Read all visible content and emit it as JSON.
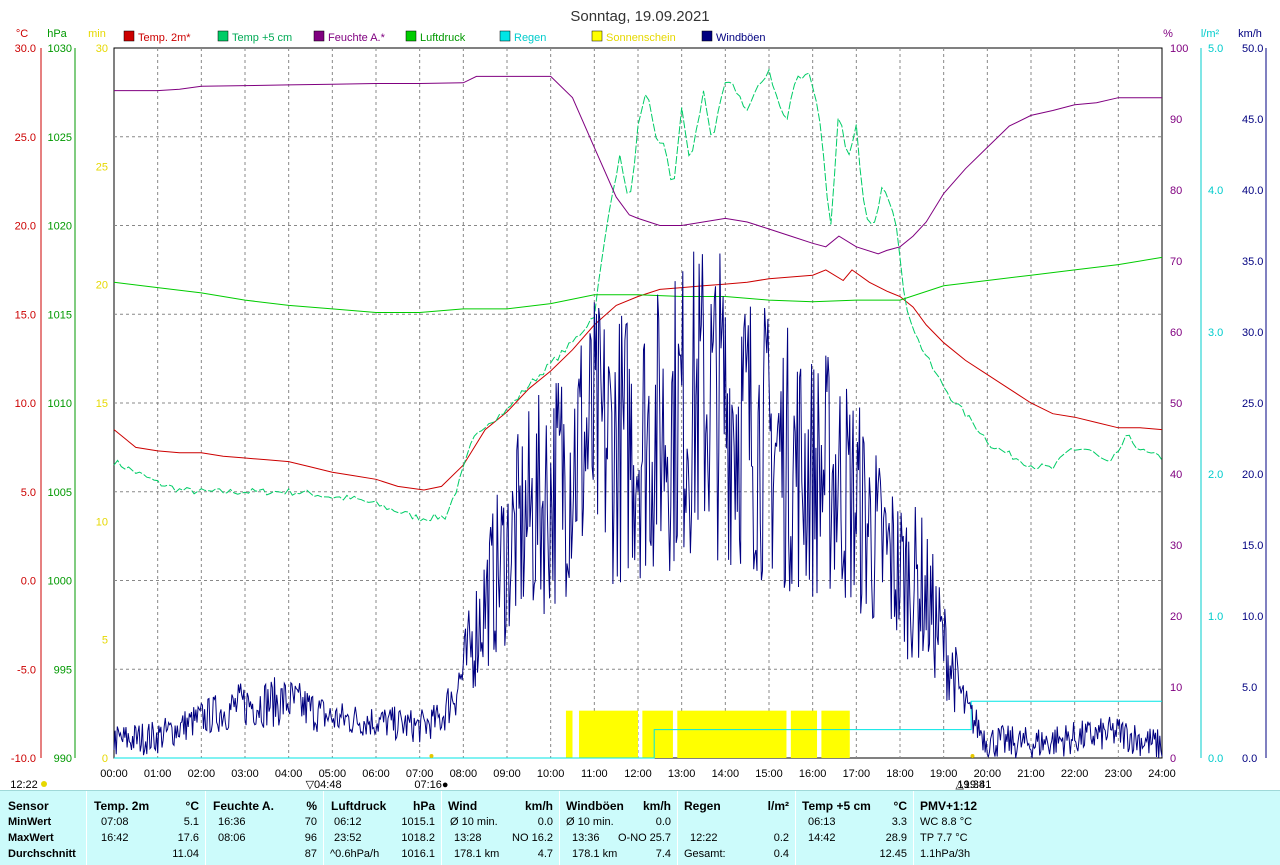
{
  "chart_data": {
    "type": "line",
    "title": "Sonntag, 19.09.2021",
    "x_ticks": [
      "00:00",
      "01:00",
      "02:00",
      "03:00",
      "04:00",
      "05:00",
      "06:00",
      "07:00",
      "08:00",
      "09:00",
      "10:00",
      "11:00",
      "12:00",
      "13:00",
      "14:00",
      "15:00",
      "16:00",
      "17:00",
      "18:00",
      "19:00",
      "20:00",
      "21:00",
      "22:00",
      "23:00",
      "24:00"
    ],
    "xlim": [
      0,
      24
    ],
    "axes": {
      "temp": {
        "unit": "°C",
        "min": -10,
        "max": 30,
        "ticks": [
          "30.0",
          "25.0",
          "20.0",
          "15.0",
          "10.0",
          "5.0",
          "0.0",
          "-5.0",
          "-10.0"
        ],
        "color": "#cc0000"
      },
      "pressure": {
        "unit": "hPa",
        "min": 990,
        "max": 1030,
        "ticks": [
          "1030",
          "1025",
          "1020",
          "1015",
          "1010",
          "1005",
          "1000",
          "995",
          "990"
        ],
        "color": "#009900"
      },
      "sunshine": {
        "unit": "min",
        "min": 0,
        "max": 30,
        "ticks": [
          "30",
          "25",
          "20",
          "15",
          "10",
          "5",
          "0"
        ],
        "color": "#e6d800"
      },
      "humidity": {
        "unit": "%",
        "min": 0,
        "max": 100,
        "ticks": [
          "100",
          "90",
          "80",
          "70",
          "60",
          "50",
          "40",
          "30",
          "20",
          "10",
          "0"
        ],
        "color": "#800080"
      },
      "rain": {
        "unit": "l/m²",
        "min": 0,
        "max": 5,
        "ticks": [
          "5.0",
          "4.0",
          "3.0",
          "2.0",
          "1.0",
          "0.0"
        ],
        "color": "#00cccc"
      },
      "wind": {
        "unit": "km/h",
        "min": 0,
        "max": 50,
        "ticks": [
          "50.0",
          "45.0",
          "40.0",
          "35.0",
          "30.0",
          "25.0",
          "20.0",
          "15.0",
          "10.0",
          "5.0",
          "0.0"
        ],
        "color": "#000080"
      }
    },
    "legend": [
      {
        "name": "Temp. 2m*",
        "color": "#cc0000"
      },
      {
        "name": "Temp +5 cm",
        "color": "#00cc66"
      },
      {
        "name": "Feuchte A.*",
        "color": "#800080"
      },
      {
        "name": "Luftdruck",
        "color": "#00cc00"
      },
      {
        "name": "Regen",
        "color": "#00e5e5"
      },
      {
        "name": "Sonnenschein",
        "color": "#ffff00"
      },
      {
        "name": "Windböen",
        "color": "#000080"
      }
    ],
    "series": [
      {
        "key": "temp2m",
        "axis": "temp",
        "color": "#cc0000",
        "points": [
          [
            0,
            8.5
          ],
          [
            0.5,
            7.5
          ],
          [
            1,
            7.3
          ],
          [
            1.5,
            7.2
          ],
          [
            2,
            7.2
          ],
          [
            2.5,
            7
          ],
          [
            3,
            6.9
          ],
          [
            3.5,
            6.8
          ],
          [
            4,
            6.7
          ],
          [
            4.5,
            6.4
          ],
          [
            5,
            6.1
          ],
          [
            5.5,
            5.9
          ],
          [
            6,
            5.7
          ],
          [
            6.5,
            5.3
          ],
          [
            7.1,
            5.1
          ],
          [
            7.5,
            5.3
          ],
          [
            8,
            6.5
          ],
          [
            8.5,
            8.5
          ],
          [
            9,
            9.5
          ],
          [
            9.5,
            10.8
          ],
          [
            10,
            11.8
          ],
          [
            10.5,
            13
          ],
          [
            11,
            14.4
          ],
          [
            11.5,
            15.5
          ],
          [
            12,
            16
          ],
          [
            12.5,
            16.4
          ],
          [
            13,
            16.5
          ],
          [
            13.5,
            16.6
          ],
          [
            14,
            16.7
          ],
          [
            14.5,
            16.8
          ],
          [
            15,
            17
          ],
          [
            15.5,
            17.1
          ],
          [
            16,
            17.2
          ],
          [
            16.3,
            17.5
          ],
          [
            16.7,
            16.9
          ],
          [
            16.9,
            17.5
          ],
          [
            17.3,
            16.8
          ],
          [
            17.7,
            16.3
          ],
          [
            18,
            16.0
          ],
          [
            18.3,
            15.4
          ],
          [
            18.6,
            14.4
          ],
          [
            19,
            13.4
          ],
          [
            19.5,
            12.4
          ],
          [
            20,
            11.6
          ],
          [
            20.5,
            10.8
          ],
          [
            21,
            10
          ],
          [
            21.5,
            9.4
          ],
          [
            22,
            9.2
          ],
          [
            22.5,
            8.9
          ],
          [
            23,
            8.6
          ],
          [
            23.5,
            8.6
          ],
          [
            24,
            8.5
          ]
        ]
      },
      {
        "key": "temp5cm",
        "axis": "temp",
        "color": "#00cc66",
        "dashed": true,
        "points": [
          [
            0,
            6.7
          ],
          [
            0.5,
            6.1
          ],
          [
            1,
            5.5
          ],
          [
            1.5,
            5.1
          ],
          [
            2,
            5.0
          ],
          [
            3,
            5.0
          ],
          [
            4,
            5.0
          ],
          [
            4.5,
            4.9
          ],
          [
            5,
            4.7
          ],
          [
            5.5,
            4.6
          ],
          [
            6,
            4.3
          ],
          [
            6.5,
            3.9
          ],
          [
            7,
            3.5
          ],
          [
            7.6,
            3.6
          ],
          [
            7.9,
            5.5
          ],
          [
            8.2,
            7.8
          ],
          [
            8.5,
            8.8
          ],
          [
            9,
            9.6
          ],
          [
            9.5,
            11.0
          ],
          [
            10,
            12.2
          ],
          [
            10.5,
            13.4
          ],
          [
            10.8,
            14.3
          ],
          [
            11.0,
            15.0
          ],
          [
            11.2,
            18.5
          ],
          [
            11.4,
            21.8
          ],
          [
            11.6,
            24
          ],
          [
            11.8,
            21
          ],
          [
            12,
            25.5
          ],
          [
            12.2,
            27.5
          ],
          [
            12.4,
            25
          ],
          [
            12.6,
            24.5
          ],
          [
            12.8,
            22
          ],
          [
            13,
            26.5
          ],
          [
            13.2,
            23.5
          ],
          [
            13.5,
            27.5
          ],
          [
            13.7,
            24.8
          ],
          [
            14,
            28
          ],
          [
            14.2,
            27.8
          ],
          [
            14.5,
            26.5
          ],
          [
            14.7,
            27.5
          ],
          [
            15,
            28.8
          ],
          [
            15.2,
            27
          ],
          [
            15.4,
            25.8
          ],
          [
            15.6,
            28.2
          ],
          [
            15.9,
            28.7
          ],
          [
            16,
            27.9
          ],
          [
            16.2,
            25.5
          ],
          [
            16.4,
            19.5
          ],
          [
            16.6,
            26.5
          ],
          [
            16.8,
            23.5
          ],
          [
            17.0,
            25.5
          ],
          [
            17.2,
            20.5
          ],
          [
            17.4,
            19.8
          ],
          [
            17.6,
            22.5
          ],
          [
            17.9,
            20.5
          ],
          [
            18.1,
            15.8
          ],
          [
            18.4,
            13.6
          ],
          [
            18.8,
            11.7
          ],
          [
            19.2,
            10.2
          ],
          [
            19.7,
            8.8
          ],
          [
            20.1,
            7.6
          ],
          [
            20.5,
            7.1
          ],
          [
            21,
            6.5
          ],
          [
            21.5,
            6.3
          ],
          [
            21.9,
            7.4
          ],
          [
            22.3,
            7.4
          ],
          [
            22.8,
            6.5
          ],
          [
            23.2,
            8.1
          ],
          [
            23.6,
            7.2
          ],
          [
            24,
            6.9
          ]
        ]
      },
      {
        "key": "humidity",
        "axis": "humidity",
        "color": "#800080",
        "points": [
          [
            0,
            94
          ],
          [
            1,
            94
          ],
          [
            1.5,
            94.2
          ],
          [
            2,
            94.6
          ],
          [
            3,
            94.7
          ],
          [
            4,
            94.8
          ],
          [
            5,
            94.9
          ],
          [
            6,
            95
          ],
          [
            7,
            95
          ],
          [
            8,
            95.1
          ],
          [
            8.3,
            96
          ],
          [
            9,
            96
          ],
          [
            10,
            96
          ],
          [
            10.5,
            93
          ],
          [
            11,
            86
          ],
          [
            11.5,
            79
          ],
          [
            11.8,
            76.5
          ],
          [
            12,
            76
          ],
          [
            12.5,
            75
          ],
          [
            13,
            75
          ],
          [
            14,
            76
          ],
          [
            14.5,
            75.5
          ],
          [
            15,
            74.5
          ],
          [
            15.5,
            73.5
          ],
          [
            16,
            72.5
          ],
          [
            16.3,
            72
          ],
          [
            16.6,
            73.5
          ],
          [
            17,
            72
          ],
          [
            17.5,
            71
          ],
          [
            17.7,
            71.5
          ],
          [
            18,
            72
          ],
          [
            18.3,
            73.5
          ],
          [
            18.6,
            75.5
          ],
          [
            19,
            79.5
          ],
          [
            19.5,
            83
          ],
          [
            20,
            86
          ],
          [
            20.5,
            89
          ],
          [
            21,
            90.5
          ],
          [
            21.5,
            91.2
          ],
          [
            22,
            92
          ],
          [
            22.5,
            92.3
          ],
          [
            23,
            93
          ],
          [
            23.5,
            93
          ],
          [
            24,
            93
          ]
        ]
      },
      {
        "key": "pressure",
        "axis": "pressure",
        "color": "#00cc00",
        "points": [
          [
            0,
            1016.8
          ],
          [
            1,
            1016.5
          ],
          [
            2,
            1016.2
          ],
          [
            3,
            1015.8
          ],
          [
            4,
            1015.5
          ],
          [
            5,
            1015.3
          ],
          [
            6,
            1015.1
          ],
          [
            7,
            1015.1
          ],
          [
            8,
            1015.3
          ],
          [
            9,
            1015.3
          ],
          [
            10,
            1015.6
          ],
          [
            11,
            1016.1
          ],
          [
            12,
            1016.1
          ],
          [
            13,
            1016.0
          ],
          [
            14,
            1016.0
          ],
          [
            15,
            1015.8
          ],
          [
            16,
            1015.7
          ],
          [
            17,
            1015.8
          ],
          [
            18,
            1015.8
          ],
          [
            19,
            1016.6
          ],
          [
            20,
            1016.9
          ],
          [
            21,
            1017.2
          ],
          [
            22,
            1017.5
          ],
          [
            23,
            1017.8
          ],
          [
            24,
            1018.2
          ]
        ]
      },
      {
        "key": "rain",
        "axis": "rain",
        "color": "#00e5e5",
        "points": [
          [
            0,
            0
          ],
          [
            12.37,
            0
          ],
          [
            12.37,
            0.2
          ],
          [
            19.63,
            0.2
          ],
          [
            19.63,
            0.4
          ],
          [
            24,
            0.4
          ]
        ]
      },
      {
        "key": "wind",
        "axis": "wind",
        "color": "#000080",
        "noisy": true,
        "points": [
          [
            0,
            1.2
          ],
          [
            1,
            1.5
          ],
          [
            2,
            2.8
          ],
          [
            3,
            3.8
          ],
          [
            4,
            4.0
          ],
          [
            5,
            2.8
          ],
          [
            6,
            2.6
          ],
          [
            7,
            2.2
          ],
          [
            7.5,
            2.8
          ],
          [
            8,
            6.0
          ],
          [
            8.5,
            11.0
          ],
          [
            9,
            14.5
          ],
          [
            9.5,
            17
          ],
          [
            10,
            18.5
          ],
          [
            10.5,
            21.5
          ],
          [
            11,
            22.5
          ],
          [
            11.5,
            22.0
          ],
          [
            12,
            22.5
          ],
          [
            12.5,
            23
          ],
          [
            13,
            24.5
          ],
          [
            13.5,
            25.5
          ],
          [
            14,
            25
          ],
          [
            14.5,
            23.5
          ],
          [
            15,
            22
          ],
          [
            15.5,
            21
          ],
          [
            16,
            20
          ],
          [
            16.5,
            20
          ],
          [
            17,
            18
          ],
          [
            17.5,
            15
          ],
          [
            18,
            13
          ],
          [
            18.5,
            12
          ],
          [
            19,
            8
          ],
          [
            19.5,
            3.5
          ],
          [
            20,
            1.2
          ],
          [
            21,
            1.0
          ],
          [
            22,
            1.4
          ],
          [
            23,
            1.8
          ],
          [
            24,
            0.8
          ]
        ]
      }
    ],
    "sunshine_periods": [
      [
        10.35,
        10.5
      ],
      [
        10.65,
        12.0
      ],
      [
        12.1,
        12.8
      ],
      [
        12.9,
        15.4
      ],
      [
        15.5,
        16.1
      ],
      [
        16.2,
        16.85
      ]
    ],
    "markers": [
      {
        "time": "04:48",
        "label": "▽04:48",
        "x": 4.8
      },
      {
        "time": "07:16",
        "label": "07:16●",
        "x": 7.27
      },
      {
        "time": "19:38",
        "label": "19:38",
        "x": 19.63
      },
      {
        "time": "19:41",
        "label": "△19:41",
        "x": 19.68
      }
    ],
    "rain_start_label": "12:22"
  },
  "stats": {
    "row_labels": {
      "sensor": "Sensor",
      "min": "MinWert",
      "max": "MaxWert",
      "avg": "Durchschnitt"
    },
    "temp2m": {
      "hdr": "Temp. 2m",
      "unit": "°C",
      "min_t": "07:08",
      "min_v": "5.1",
      "max_t": "16:42",
      "max_v": "17.6",
      "avg": "11.04"
    },
    "humidity": {
      "hdr": "Feuchte A.",
      "unit": "%",
      "min_t": "16:36",
      "min_v": "70",
      "max_t": "08:06",
      "max_v": "96",
      "avg": "87"
    },
    "pressure": {
      "hdr": "Luftdruck",
      "unit": "hPa",
      "min_t": "06:12",
      "min_v": "1015.1",
      "max_t": "23:52",
      "max_v": "1018.2",
      "avg_l": "^0.6hPa/h",
      "avg": "1016.1"
    },
    "wind": {
      "hdr": "Wind",
      "unit": "km/h",
      "r1_l": "Ø 10 min.",
      "r1_v": "0.0",
      "r2_l": "13:28",
      "r2_m": "NO",
      "r2_v": "16.2",
      "r3_l": "178.1 km",
      "r3_v": "4.7"
    },
    "gusts": {
      "hdr": "Windböen",
      "unit": "km/h",
      "r1_l": "Ø 10 min.",
      "r1_v": "0.0",
      "r2_l": "13:36",
      "r2_m": "O-NO",
      "r2_v": "25.7",
      "r3_l": "178.1 km",
      "r3_v": "7.4"
    },
    "rain": {
      "hdr": "Regen",
      "unit": "l/m²",
      "r2_l": "12:22",
      "r2_v": "0.2",
      "r3_l": "Gesamt:",
      "r3_v": "0.4"
    },
    "temp5cm": {
      "hdr": "Temp +5 cm",
      "unit": "°C",
      "min_t": "06:13",
      "min_v": "3.3",
      "max_t": "14:42",
      "max_v": "28.9",
      "avg": "12.45"
    },
    "pmv": {
      "hdr": "PMV+1:12",
      "r1": "WC 8.8 °C",
      "r2": "TP 7.7 °C",
      "r3": "1.1hPa/3h"
    }
  }
}
